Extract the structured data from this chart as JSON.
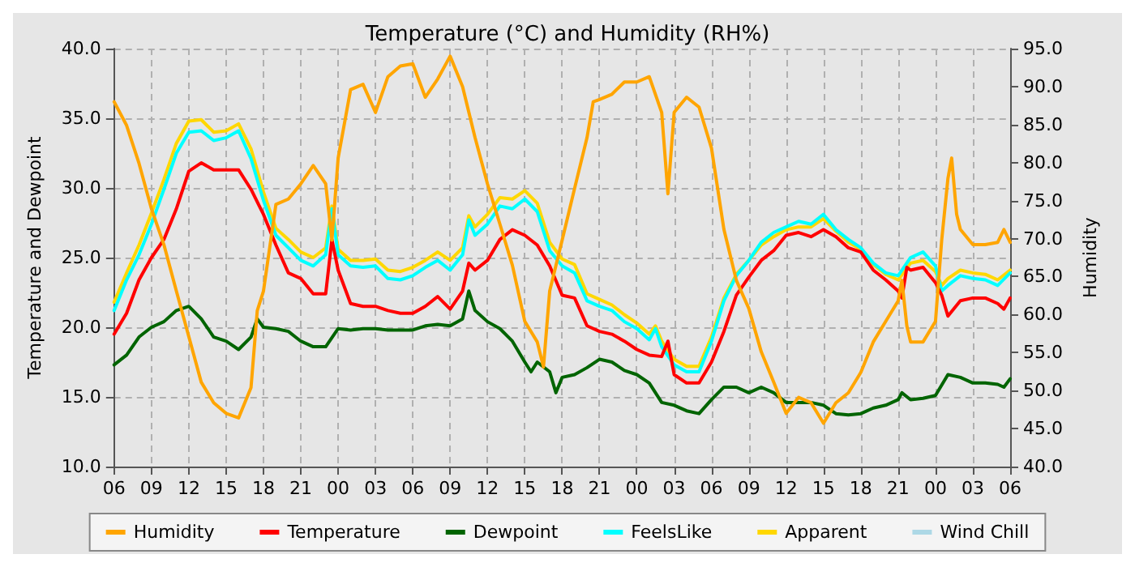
{
  "chart_data": {
    "type": "line",
    "title": "Temperature (°C) and Humidity (RH%)",
    "ylabel": "Temperature and Dewpoint",
    "y2label": "Humidity",
    "xlim": [
      6,
      78
    ],
    "xticks": [
      {
        "value": 6,
        "label": "06"
      },
      {
        "value": 9,
        "label": "09"
      },
      {
        "value": 12,
        "label": "12"
      },
      {
        "value": 15,
        "label": "15"
      },
      {
        "value": 18,
        "label": "18"
      },
      {
        "value": 21,
        "label": "21"
      },
      {
        "value": 24,
        "label": "00"
      },
      {
        "value": 27,
        "label": "03"
      },
      {
        "value": 30,
        "label": "06"
      },
      {
        "value": 33,
        "label": "09"
      },
      {
        "value": 36,
        "label": "12"
      },
      {
        "value": 39,
        "label": "15"
      },
      {
        "value": 42,
        "label": "18"
      },
      {
        "value": 45,
        "label": "21"
      },
      {
        "value": 48,
        "label": "00"
      },
      {
        "value": 51,
        "label": "03"
      },
      {
        "value": 54,
        "label": "06"
      },
      {
        "value": 57,
        "label": "09"
      },
      {
        "value": 60,
        "label": "12"
      },
      {
        "value": 63,
        "label": "15"
      },
      {
        "value": 66,
        "label": "18"
      },
      {
        "value": 69,
        "label": "21"
      },
      {
        "value": 72,
        "label": "00"
      },
      {
        "value": 75,
        "label": "03"
      },
      {
        "value": 78,
        "label": "06"
      }
    ],
    "ylim": [
      10,
      40
    ],
    "yticks": [
      {
        "value": 10,
        "label": "10.0"
      },
      {
        "value": 15,
        "label": "15.0"
      },
      {
        "value": 20,
        "label": "20.0"
      },
      {
        "value": 25,
        "label": "25.0"
      },
      {
        "value": 30,
        "label": "30.0"
      },
      {
        "value": 35,
        "label": "35.0"
      },
      {
        "value": 40,
        "label": "40.0"
      }
    ],
    "y2lim": [
      40,
      95
    ],
    "y2ticks": [
      {
        "value": 40,
        "label": "40.0"
      },
      {
        "value": 45,
        "label": "45.0"
      },
      {
        "value": 50,
        "label": "50.0"
      },
      {
        "value": 55,
        "label": "55.0"
      },
      {
        "value": 60,
        "label": "60.0"
      },
      {
        "value": 65,
        "label": "65.0"
      },
      {
        "value": 70,
        "label": "70.0"
      },
      {
        "value": 75,
        "label": "75.0"
      },
      {
        "value": 80,
        "label": "80.0"
      },
      {
        "value": 85,
        "label": "85.0"
      },
      {
        "value": 90,
        "label": "90.0"
      },
      {
        "value": 95,
        "label": "95.0"
      }
    ],
    "grid": true,
    "legend": "bottom",
    "marker": "none",
    "line_style": "solid",
    "series": [
      {
        "name": "Humidity",
        "color": "#ffa500",
        "axis": "y2",
        "x": [
          6,
          7,
          8,
          9,
          10,
          11,
          12,
          13,
          14,
          15,
          16,
          17,
          17.5,
          18,
          19,
          20,
          21,
          22,
          23,
          23.5,
          24,
          25,
          26,
          27,
          28,
          29,
          30,
          31,
          32,
          33,
          34,
          35,
          36,
          37,
          38,
          39,
          40,
          40.5,
          41,
          42,
          43,
          44,
          44.5,
          45,
          46,
          47,
          48,
          49,
          50,
          50.5,
          51,
          52,
          53,
          54,
          55,
          56,
          57,
          58,
          59,
          60,
          61,
          62,
          63,
          64,
          65,
          66,
          67,
          68,
          69,
          69.3,
          69.7,
          70,
          71,
          72,
          72.5,
          73,
          73.3,
          73.7,
          74,
          75,
          76,
          77,
          77.5,
          78
        ],
        "values": [
          88.0,
          84.9,
          79.9,
          73.9,
          69.2,
          63.1,
          57.1,
          51.1,
          48.4,
          47.0,
          46.4,
          50.4,
          60.5,
          63.1,
          74.5,
          75.2,
          77.2,
          79.6,
          77.2,
          69.8,
          80.6,
          89.6,
          90.3,
          86.6,
          91.3,
          92.7,
          93.0,
          88.6,
          91.0,
          94.0,
          90.0,
          83.3,
          77.2,
          71.9,
          66.5,
          59.1,
          56.4,
          53.1,
          63.1,
          69.8,
          76.6,
          83.3,
          88.0,
          88.3,
          89.0,
          90.6,
          90.6,
          91.3,
          86.6,
          75.9,
          86.6,
          88.6,
          87.3,
          81.9,
          71.2,
          64.5,
          60.8,
          55.1,
          51.1,
          47.0,
          49.1,
          48.4,
          45.7,
          48.4,
          49.7,
          52.4,
          56.4,
          59.1,
          61.8,
          64.5,
          58.5,
          56.4,
          56.4,
          59.1,
          69.8,
          77.9,
          80.6,
          73.2,
          71.2,
          69.2,
          69.2,
          69.5,
          71.2,
          69.5
        ]
      },
      {
        "name": "Temperature",
        "color": "#ff0000",
        "x": [
          6,
          7,
          8,
          9,
          10,
          11,
          12,
          13,
          14,
          15,
          16,
          17,
          18,
          19,
          20,
          21,
          22,
          23,
          23.5,
          24,
          25,
          26,
          27,
          28,
          29,
          30,
          31,
          32,
          33,
          34,
          34.5,
          35,
          36,
          37,
          38,
          39,
          40,
          41,
          42,
          43,
          44,
          45,
          46,
          47,
          48,
          49,
          50,
          50.5,
          51,
          52,
          53,
          54,
          55,
          56,
          57,
          58,
          59,
          60,
          61,
          62,
          63,
          64,
          65,
          66,
          67,
          68,
          69,
          69.3,
          69.7,
          70,
          71,
          72,
          72.5,
          73,
          74,
          75,
          76,
          77,
          77.5,
          78
        ],
        "values": [
          19.5,
          21.0,
          23.4,
          25.0,
          26.3,
          28.5,
          31.2,
          31.8,
          31.3,
          31.3,
          31.3,
          29.9,
          28.1,
          25.9,
          23.9,
          23.5,
          22.4,
          22.4,
          26.3,
          24.1,
          21.7,
          21.5,
          21.5,
          21.2,
          21.0,
          21.0,
          21.5,
          22.2,
          21.3,
          22.6,
          24.6,
          24.1,
          24.8,
          26.3,
          27.0,
          26.6,
          25.9,
          24.4,
          22.3,
          22.1,
          20.1,
          19.7,
          19.5,
          19.0,
          18.4,
          18.0,
          17.9,
          19.0,
          16.6,
          16.0,
          16.0,
          17.5,
          19.7,
          22.3,
          23.6,
          24.8,
          25.5,
          26.6,
          26.8,
          26.5,
          27.0,
          26.5,
          25.7,
          25.4,
          24.1,
          23.4,
          22.6,
          22.1,
          24.3,
          24.1,
          24.3,
          23.2,
          22.3,
          20.8,
          21.9,
          22.1,
          22.1,
          21.7,
          21.3,
          22.1
        ]
      },
      {
        "name": "Dewpoint",
        "color": "#006400",
        "x": [
          6,
          7,
          8,
          9,
          10,
          11,
          12,
          13,
          14,
          15,
          16,
          17,
          17.5,
          18,
          19,
          20,
          21,
          22,
          23,
          24,
          25,
          26,
          27,
          28,
          29,
          30,
          31,
          32,
          33,
          34,
          34.5,
          35,
          36,
          37,
          38,
          39,
          39.5,
          40,
          41,
          41.5,
          42,
          43,
          44,
          45,
          46,
          47,
          48,
          49,
          50,
          51,
          52,
          53,
          54,
          55,
          56,
          57,
          58,
          59,
          60,
          61,
          62,
          63,
          64,
          65,
          66,
          67,
          68,
          69,
          69.3,
          70,
          71,
          72,
          73,
          74,
          75,
          76,
          77,
          77.5,
          78
        ],
        "values": [
          17.3,
          18.0,
          19.3,
          20.0,
          20.4,
          21.2,
          21.5,
          20.6,
          19.3,
          19.0,
          18.4,
          19.3,
          20.6,
          20.0,
          19.9,
          19.7,
          19.0,
          18.6,
          18.6,
          19.9,
          19.8,
          19.9,
          19.9,
          19.8,
          19.8,
          19.8,
          20.1,
          20.2,
          20.1,
          20.6,
          22.6,
          21.2,
          20.4,
          19.9,
          19.0,
          17.5,
          16.8,
          17.5,
          16.8,
          15.3,
          16.4,
          16.6,
          17.1,
          17.7,
          17.5,
          16.9,
          16.6,
          16.0,
          14.6,
          14.4,
          14.0,
          13.8,
          14.8,
          15.7,
          15.7,
          15.3,
          15.7,
          15.3,
          14.6,
          14.6,
          14.6,
          14.4,
          13.8,
          13.7,
          13.8,
          14.2,
          14.4,
          14.8,
          15.3,
          14.8,
          14.9,
          15.1,
          16.6,
          16.4,
          16.0,
          16.0,
          15.9,
          15.7,
          16.3
        ]
      },
      {
        "name": "FeelsLike",
        "color": "#00ffff",
        "x": [
          6,
          7,
          8,
          9,
          10,
          11,
          12,
          13,
          14,
          15,
          16,
          17,
          18,
          19,
          20,
          21,
          22,
          23,
          23.5,
          24,
          25,
          26,
          27,
          28,
          29,
          30,
          31,
          32,
          33,
          34,
          34.5,
          35,
          36,
          37,
          38,
          39,
          40,
          41,
          42,
          43,
          44,
          45,
          46,
          47,
          48,
          49,
          49.5,
          50,
          51,
          52,
          53,
          54,
          55,
          56,
          57,
          58,
          59,
          60,
          61,
          62,
          63,
          64,
          65,
          66,
          67,
          68,
          69,
          70,
          71,
          72,
          72.5,
          73,
          74,
          75,
          76,
          77,
          78
        ],
        "values": [
          21.2,
          23.4,
          25.2,
          27.4,
          29.9,
          32.5,
          34.0,
          34.1,
          33.4,
          33.6,
          34.1,
          32.1,
          29.1,
          26.6,
          25.7,
          24.8,
          24.4,
          25.2,
          28.5,
          25.2,
          24.4,
          24.3,
          24.4,
          23.5,
          23.4,
          23.7,
          24.3,
          24.8,
          24.1,
          25.2,
          27.7,
          26.6,
          27.4,
          28.7,
          28.5,
          29.2,
          28.3,
          25.5,
          24.4,
          23.9,
          21.9,
          21.5,
          21.2,
          20.4,
          19.9,
          19.1,
          19.9,
          18.6,
          17.3,
          16.8,
          16.8,
          19.0,
          21.9,
          23.7,
          24.8,
          26.1,
          26.8,
          27.2,
          27.6,
          27.4,
          28.1,
          27.0,
          26.3,
          25.7,
          24.6,
          23.9,
          23.7,
          25.0,
          25.4,
          24.4,
          22.6,
          23.0,
          23.7,
          23.5,
          23.4,
          23.0,
          23.9
        ]
      },
      {
        "name": "Apparent",
        "color": "#ffd700",
        "x": [
          6,
          7,
          8,
          9,
          10,
          11,
          12,
          13,
          14,
          15,
          16,
          17,
          18,
          19,
          20,
          21,
          22,
          23,
          23.5,
          24,
          25,
          26,
          27,
          28,
          29,
          30,
          31,
          32,
          33,
          34,
          34.5,
          35,
          36,
          37,
          38,
          39,
          40,
          41,
          42,
          43,
          44,
          45,
          46,
          47,
          48,
          49,
          49.5,
          50,
          51,
          52,
          53,
          54,
          55,
          56,
          57,
          58,
          59,
          60,
          61,
          62,
          63,
          64,
          65,
          66,
          67,
          68,
          69,
          70,
          71,
          72,
          72.5,
          73,
          74,
          75,
          76,
          77,
          78
        ],
        "values": [
          21.8,
          23.9,
          25.9,
          28.2,
          30.6,
          33.2,
          34.8,
          34.9,
          34.0,
          34.1,
          34.6,
          32.8,
          29.7,
          27.1,
          26.3,
          25.4,
          25.0,
          25.7,
          28.7,
          25.6,
          24.8,
          24.8,
          24.9,
          24.1,
          24.0,
          24.3,
          24.8,
          25.4,
          24.8,
          25.7,
          28.0,
          27.2,
          28.1,
          29.3,
          29.2,
          29.8,
          28.9,
          26.1,
          24.9,
          24.5,
          22.4,
          22.0,
          21.6,
          20.9,
          20.3,
          19.5,
          20.1,
          19.0,
          17.7,
          17.2,
          17.2,
          19.3,
          22.1,
          23.8,
          24.8,
          25.9,
          26.5,
          27.0,
          27.2,
          27.2,
          27.8,
          26.9,
          26.1,
          25.6,
          24.5,
          23.8,
          23.4,
          24.6,
          24.8,
          24.0,
          23.0,
          23.5,
          24.1,
          23.9,
          23.8,
          23.4,
          24.1
        ]
      },
      {
        "name": "Wind Chill",
        "color": "#add8e6"
      }
    ]
  }
}
